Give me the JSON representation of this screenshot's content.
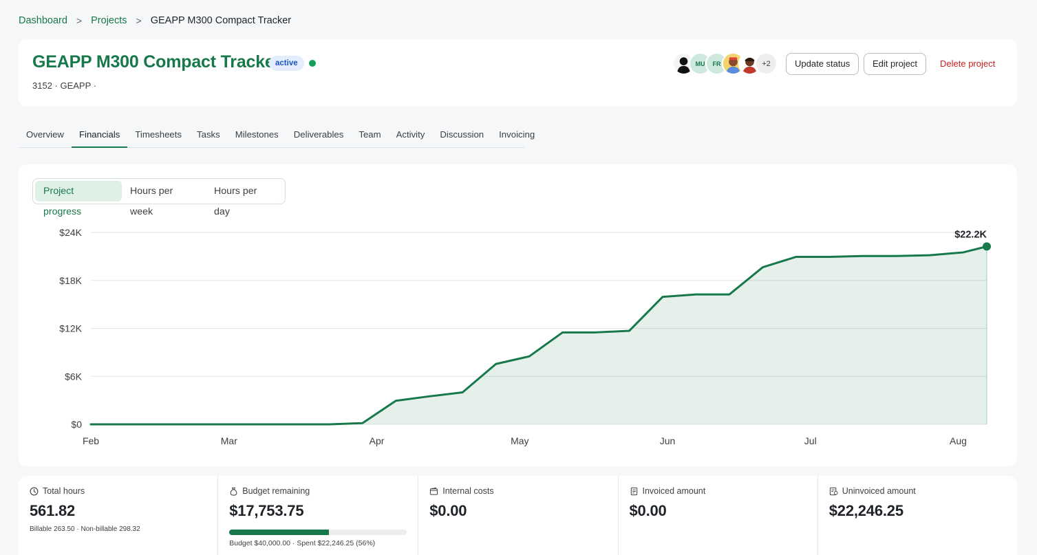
{
  "breadcrumb": {
    "items": [
      "Dashboard",
      "Projects"
    ],
    "current": "GEAPP M300 Compact Tracker",
    "separator": ">"
  },
  "project": {
    "title": "GEAPP M300 Compact Tracker",
    "status": "active",
    "meta": "3152 · GEAPP ·",
    "members": [
      {
        "type": "photo",
        "icon": "person-silhouette-avatar"
      },
      {
        "type": "initials",
        "initials": "MU"
      },
      {
        "type": "initials",
        "initials": "FR"
      },
      {
        "type": "photo",
        "icon": "person-photo-avatar"
      },
      {
        "type": "photo",
        "icon": "person-photo-avatar"
      }
    ],
    "more_members": "+2"
  },
  "actions": {
    "update_status": "Update status",
    "edit_project": "Edit project",
    "delete_project": "Delete project"
  },
  "tabs": [
    "Overview",
    "Financials",
    "Timesheets",
    "Tasks",
    "Milestones",
    "Deliverables",
    "Team",
    "Activity",
    "Discussion",
    "Invoicing"
  ],
  "active_tab": "Financials",
  "chart_toggle": {
    "options": [
      "Project progress",
      "Hours per week",
      "Hours per day"
    ],
    "selected": "Project progress"
  },
  "chart_data": {
    "type": "area",
    "title": "",
    "xlabel": "",
    "ylabel": "",
    "x_ticks": [
      "Feb",
      "Mar",
      "Apr",
      "May",
      "Jun",
      "Jul",
      "Aug"
    ],
    "y_ticks": [
      "$0",
      "$6K",
      "$12K",
      "$18K",
      "$24K"
    ],
    "ylim": [
      0,
      24000
    ],
    "xlim": [
      "2024-02-01",
      "2024-08-07"
    ],
    "grid": true,
    "color": "#17784a",
    "series": [
      {
        "x": [
          "2024-02-01",
          "2024-02-08",
          "2024-02-15",
          "2024-02-22",
          "2024-03-01",
          "2024-03-08",
          "2024-03-15",
          "2024-03-22",
          "2024-03-29",
          "2024-04-05",
          "2024-04-12",
          "2024-04-19",
          "2024-04-26",
          "2024-05-03",
          "2024-05-10",
          "2024-05-17",
          "2024-05-24",
          "2024-05-31",
          "2024-06-07",
          "2024-06-14",
          "2024-06-21",
          "2024-06-28",
          "2024-07-05",
          "2024-07-12",
          "2024-07-19",
          "2024-07-26",
          "2024-08-02",
          "2024-08-07"
        ],
        "y": [
          0,
          0,
          0,
          0,
          0,
          0,
          0,
          0,
          150,
          2950,
          3500,
          4000,
          7550,
          8500,
          11500,
          11500,
          11700,
          15950,
          16250,
          16250,
          19650,
          20950,
          20950,
          21050,
          21050,
          21150,
          21500,
          22246.25
        ]
      }
    ],
    "end_label": "$22.2K"
  },
  "stats": [
    {
      "icon": "clock-icon",
      "label": "Total hours",
      "value": "561.82",
      "sub": "Billable 263.50 · Non-billable 298.32"
    },
    {
      "icon": "money-bag-icon",
      "label": "Budget remaining",
      "value": "$17,753.75",
      "progress": 0.56,
      "sub": "Budget $40,000.00 · Spent $22,246.25 (56%)"
    },
    {
      "icon": "wallet-icon",
      "label": "Internal costs",
      "value": "$0.00"
    },
    {
      "icon": "receipt-icon",
      "label": "Invoiced amount",
      "value": "$0.00"
    },
    {
      "icon": "receipt-pending-icon",
      "label": "Uninvoiced amount",
      "value": "$22,246.25"
    }
  ]
}
